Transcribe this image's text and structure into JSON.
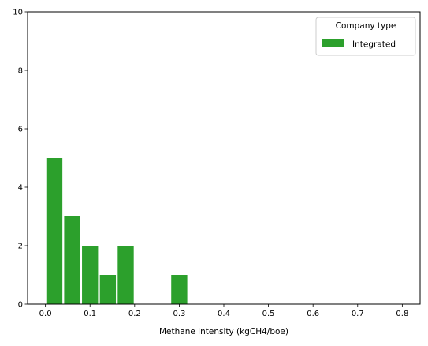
{
  "chart_data": {
    "type": "bar",
    "title": "",
    "xlabel": "Methane intensity (kgCH4/boe)",
    "ylabel": "",
    "xlim": [
      -0.04,
      0.84
    ],
    "ylim": [
      0,
      10
    ],
    "x_ticks": [
      "0.0",
      "0.1",
      "0.2",
      "0.3",
      "0.4",
      "0.5",
      "0.6",
      "0.7",
      "0.8"
    ],
    "y_ticks": [
      "0",
      "2",
      "4",
      "6",
      "8",
      "10"
    ],
    "grid": false,
    "legend": {
      "title": "Company type",
      "position": "top-right",
      "entries": [
        "Integrated"
      ]
    },
    "series": [
      {
        "name": "Integrated",
        "color": "#2ca02c",
        "bins": [
          {
            "start": 0.0,
            "end": 0.04,
            "count": 5
          },
          {
            "start": 0.04,
            "end": 0.08,
            "count": 3
          },
          {
            "start": 0.08,
            "end": 0.12,
            "count": 2
          },
          {
            "start": 0.12,
            "end": 0.16,
            "count": 1
          },
          {
            "start": 0.16,
            "end": 0.2,
            "count": 2
          },
          {
            "start": 0.28,
            "end": 0.32,
            "count": 1
          }
        ]
      }
    ]
  }
}
